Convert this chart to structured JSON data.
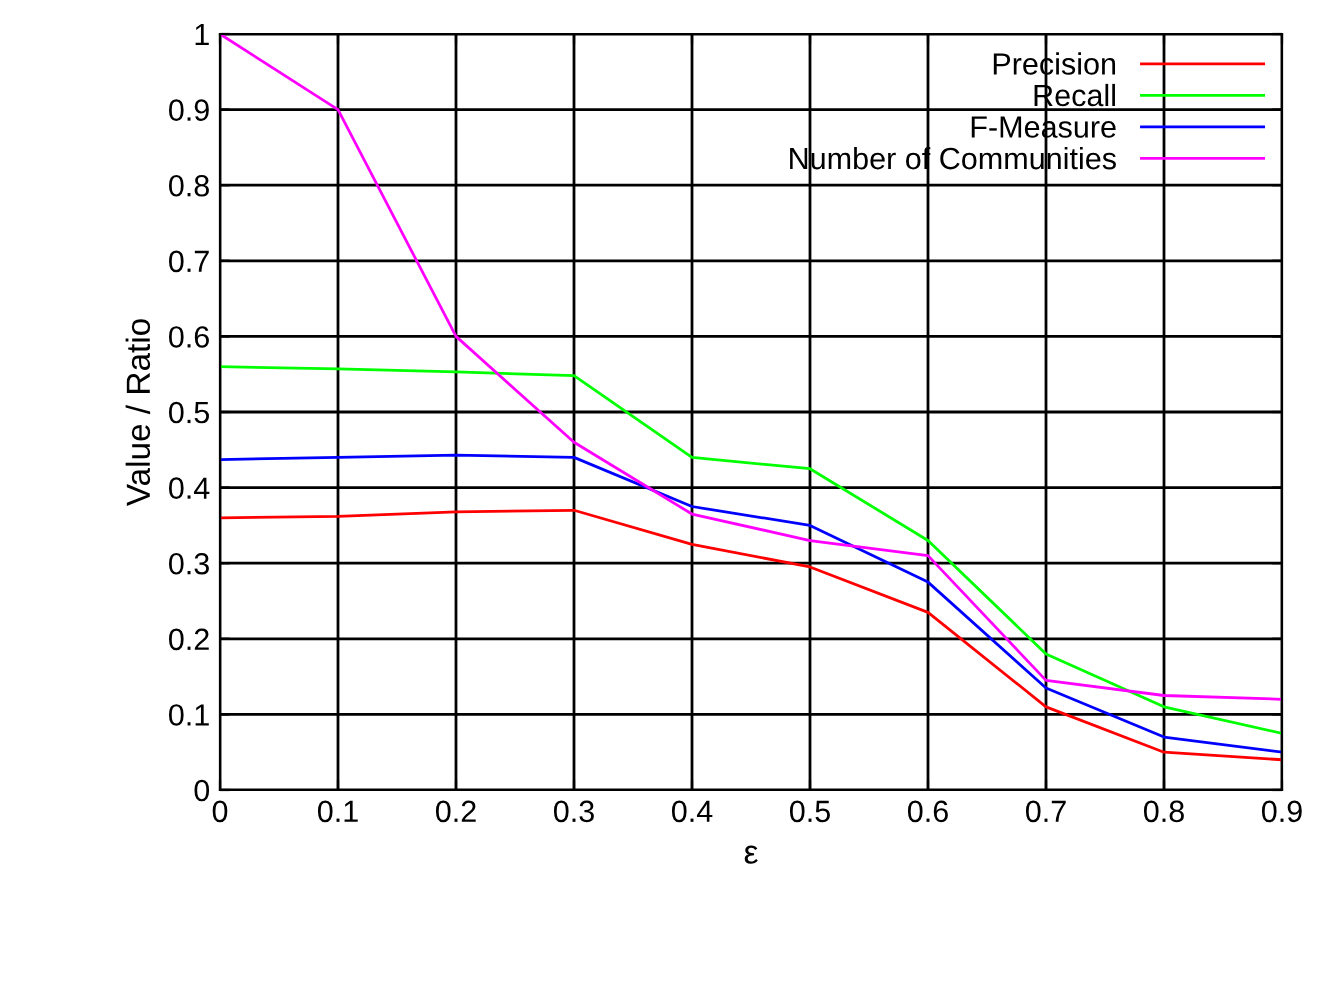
{
  "chart_data": {
    "type": "line",
    "xlabel": "ε",
    "ylabel": "Value / Ratio",
    "x": [
      0,
      0.1,
      0.2,
      0.3,
      0.4,
      0.5,
      0.6,
      0.7,
      0.8,
      0.9
    ],
    "series": [
      {
        "name": "Precision",
        "color": "#ff0000",
        "values": [
          0.36,
          0.362,
          0.368,
          0.37,
          0.325,
          0.295,
          0.235,
          0.11,
          0.05,
          0.04
        ]
      },
      {
        "name": "Recall",
        "color": "#00ff00",
        "values": [
          0.56,
          0.557,
          0.553,
          0.548,
          0.44,
          0.425,
          0.33,
          0.18,
          0.11,
          0.075
        ]
      },
      {
        "name": "F-Measure",
        "color": "#0000ff",
        "values": [
          0.437,
          0.44,
          0.443,
          0.44,
          0.375,
          0.35,
          0.275,
          0.135,
          0.07,
          0.05
        ]
      },
      {
        "name": "Number of Communities",
        "color": "#ff00ff",
        "values": [
          1.0,
          0.9,
          0.6,
          0.46,
          0.365,
          0.33,
          0.31,
          0.145,
          0.125,
          0.12
        ]
      }
    ],
    "xlim": [
      0,
      0.9
    ],
    "ylim": [
      0,
      1
    ],
    "xticks": [
      0,
      0.1,
      0.2,
      0.3,
      0.4,
      0.5,
      0.6,
      0.7,
      0.8,
      0.9
    ],
    "yticks": [
      0,
      0.1,
      0.2,
      0.3,
      0.4,
      0.5,
      0.6,
      0.7,
      0.8,
      0.9,
      1
    ],
    "grid": true,
    "legend": "top right",
    "marker": "none",
    "line_style": "solid"
  }
}
